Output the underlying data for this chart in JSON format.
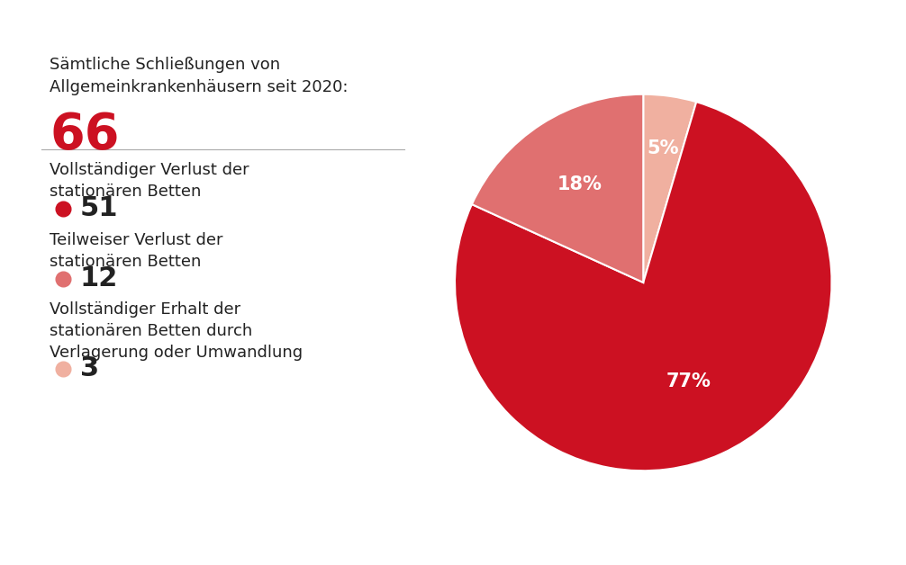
{
  "title_line1": "Sämtliche Schließungen von",
  "title_line2": "Allgemeinkrankenhäusern seit 2020:",
  "total_number": "66",
  "total_color": "#cc1122",
  "categories": [
    {
      "label_line1": "Vollständiger Verlust der",
      "label_line2": "stationären Betten",
      "value": 51,
      "pct": "77%",
      "color": "#cc1122",
      "dot_color": "#cc1122"
    },
    {
      "label_line1": "Teilweiser Verlust der",
      "label_line2": "stationären Betten",
      "value": 12,
      "pct": "18%",
      "color": "#e07070",
      "dot_color": "#e07070"
    },
    {
      "label_line1": "Vollständiger Erhalt der",
      "label_line2": "stationären Betten durch",
      "label_line3": "Verlagerung oder Umwandlung",
      "value": 3,
      "pct": "5%",
      "color": "#f0b0a0",
      "dot_color": "#f0b0a0"
    }
  ],
  "bg_color": "#ffffff",
  "text_color": "#222222",
  "pie_label_color": "#ffffff",
  "pie_label_fontsize": 15,
  "separator_color": "#aaaaaa",
  "title_fontsize": 13,
  "label_fontsize": 13,
  "number_fontsize": 22,
  "total_fontsize": 40,
  "dot_size": 12
}
